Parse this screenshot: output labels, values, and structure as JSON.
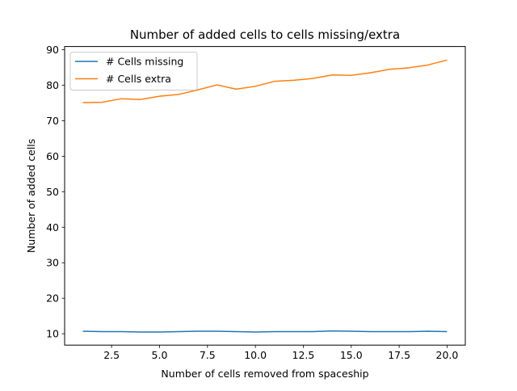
{
  "chart_data": {
    "type": "line",
    "title": "Number of added cells to cells missing/extra",
    "xlabel": "Number of cells removed from spaceship",
    "ylabel": "Number of added cells",
    "xlim": [
      0.05,
      20.95
    ],
    "ylim": [
      6.8,
      90.9
    ],
    "xticks": [
      2.5,
      5.0,
      7.5,
      10.0,
      12.5,
      15.0,
      17.5,
      20.0
    ],
    "xtick_labels": [
      "2.5",
      "5.0",
      "7.5",
      "10.0",
      "12.5",
      "15.0",
      "17.5",
      "20.0"
    ],
    "yticks": [
      10,
      20,
      30,
      40,
      50,
      60,
      70,
      80,
      90
    ],
    "ytick_labels": [
      "10",
      "20",
      "30",
      "40",
      "50",
      "60",
      "70",
      "80",
      "90"
    ],
    "grid": false,
    "legend_position": "top-left",
    "x": [
      1,
      2,
      3,
      4,
      5,
      6,
      7,
      8,
      9,
      10,
      11,
      12,
      13,
      14,
      15,
      16,
      17,
      18,
      19,
      20
    ],
    "series": [
      {
        "name": "# Cells missing",
        "color": "#1f77b4",
        "values": [
          10.7,
          10.6,
          10.6,
          10.5,
          10.5,
          10.6,
          10.7,
          10.7,
          10.6,
          10.5,
          10.6,
          10.6,
          10.6,
          10.8,
          10.7,
          10.6,
          10.6,
          10.6,
          10.7,
          10.6
        ]
      },
      {
        "name": "# Cells extra",
        "color": "#ff7f0e",
        "values": [
          75.1,
          75.2,
          76.2,
          76.0,
          76.9,
          77.4,
          78.7,
          80.1,
          78.9,
          79.7,
          81.1,
          81.4,
          81.9,
          82.9,
          82.8,
          83.5,
          84.5,
          84.9,
          85.7,
          87.1
        ]
      }
    ]
  }
}
